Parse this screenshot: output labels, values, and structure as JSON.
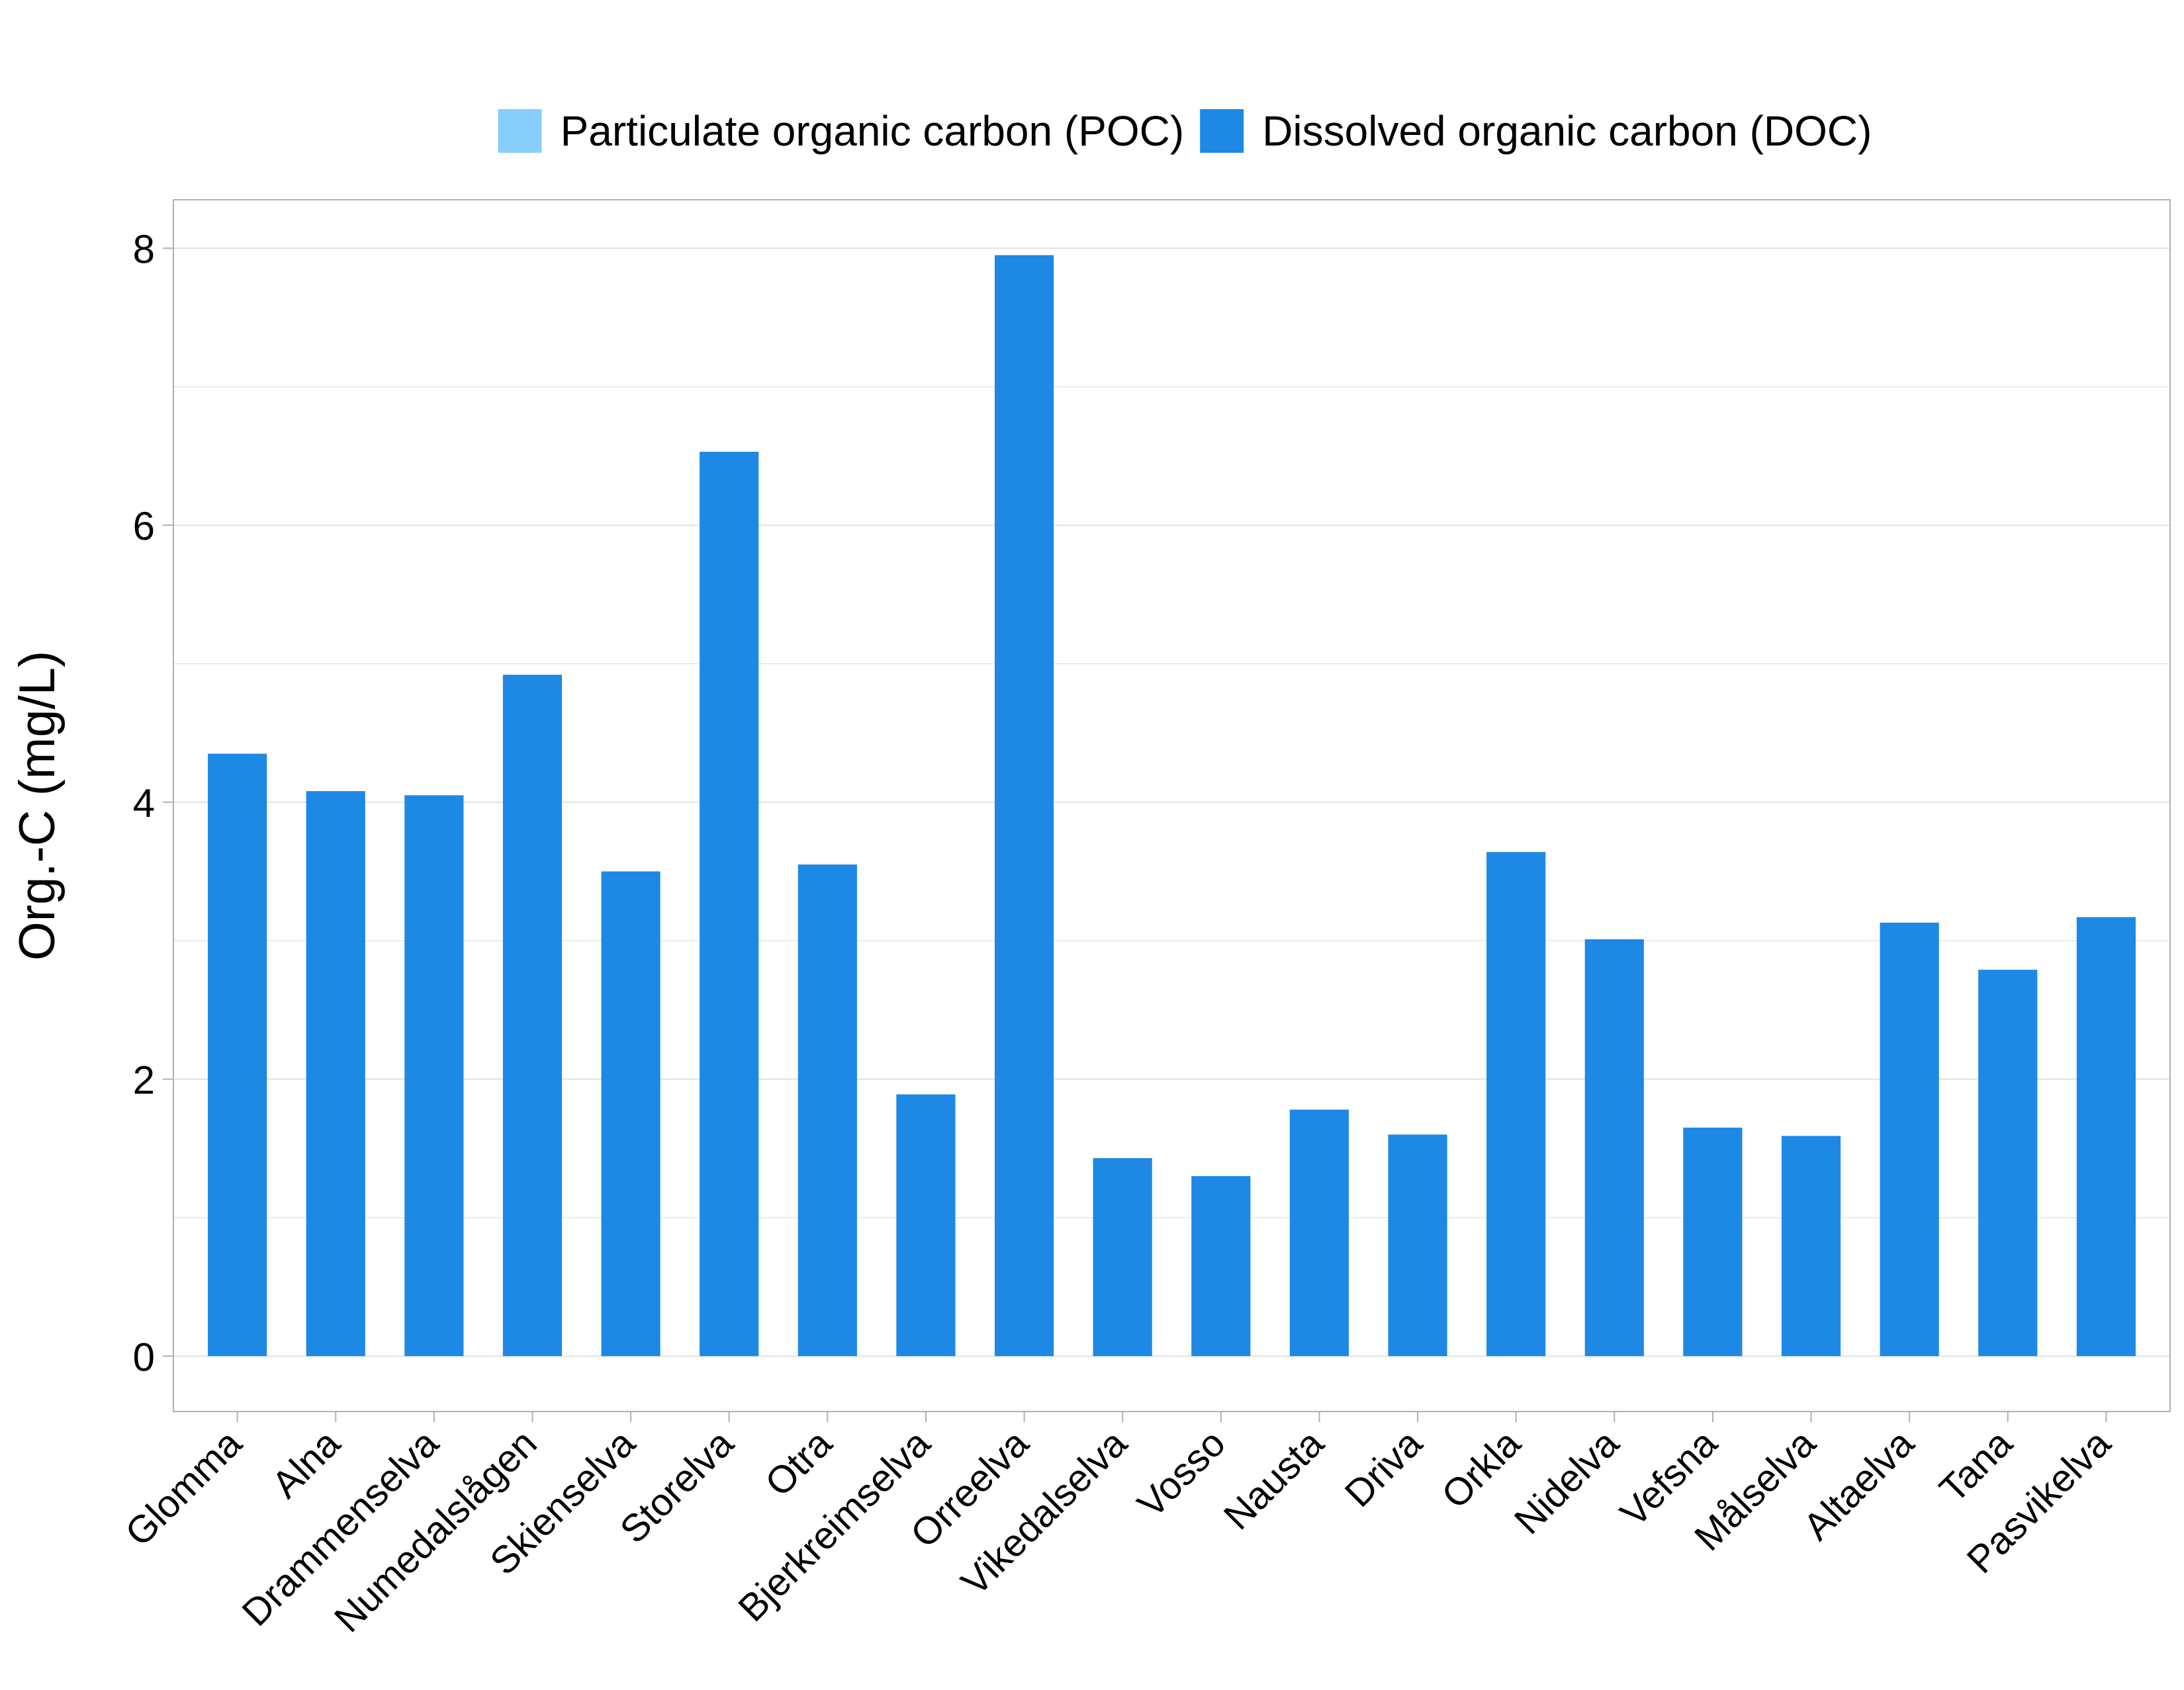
{
  "chart_data": {
    "type": "bar",
    "title": "",
    "xlabel": "",
    "ylabel": "Org.-C (mg/L)",
    "ylim": [
      -0.4,
      8.35
    ],
    "yticks": [
      0,
      2,
      4,
      6,
      8
    ],
    "grid": true,
    "legend_position": "top-center",
    "categories": [
      "Glomma",
      "Alna",
      "Drammenselva",
      "Numedalslågen",
      "Skienselva",
      "Storelva",
      "Otra",
      "Bjerkreimselva",
      "Orreelva",
      "Vikedalselva",
      "Vosso",
      "Nausta",
      "Driva",
      "Orkla",
      "Nidelva",
      "Vefsna",
      "Målselva",
      "Altaelva",
      "Tana",
      "Pasvikelva"
    ],
    "series": [
      {
        "name": "Particulate organic carbon (POC)",
        "color": "#87CEFA",
        "values": [
          0,
          0,
          0,
          0,
          0,
          0,
          0,
          0,
          0,
          0,
          0,
          0,
          0,
          0,
          0,
          0,
          0,
          0,
          0,
          0
        ]
      },
      {
        "name": "Dissolved organic carbon (DOC)",
        "color": "#1E88E5",
        "values": [
          4.35,
          4.08,
          4.05,
          4.92,
          3.5,
          6.53,
          3.55,
          1.89,
          7.95,
          1.43,
          1.3,
          1.78,
          1.6,
          3.64,
          3.01,
          1.65,
          1.59,
          3.13,
          2.79,
          3.17
        ]
      }
    ],
    "colors": {
      "grid": "#E5E5E5",
      "panel_border": "#B0B0B0",
      "axis_ticks": "#B0B0B0"
    }
  }
}
